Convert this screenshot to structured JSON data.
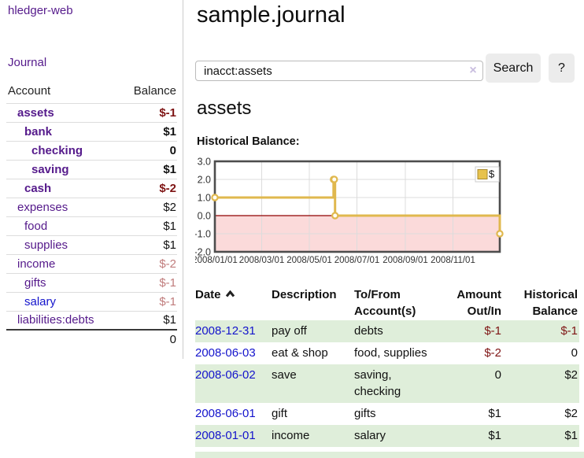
{
  "app": {
    "brand": "hledger-web"
  },
  "sidebar": {
    "nav_journal": "Journal",
    "accounts_table": {
      "col_account": "Account",
      "col_balance": "Balance",
      "rows": [
        {
          "name": "assets",
          "indent": 1,
          "bold": true,
          "name_tone": "purple",
          "balance": "$-1",
          "balance_tone": "neg-strong"
        },
        {
          "name": "bank",
          "indent": 2,
          "bold": true,
          "name_tone": "purple",
          "balance": "$1",
          "balance_tone": "normal"
        },
        {
          "name": "checking",
          "indent": 3,
          "bold": true,
          "name_tone": "purple",
          "balance": "0",
          "balance_tone": "normal"
        },
        {
          "name": "saving",
          "indent": 3,
          "bold": true,
          "name_tone": "purple",
          "balance": "$1",
          "balance_tone": "normal"
        },
        {
          "name": "cash",
          "indent": 2,
          "bold": true,
          "name_tone": "purple",
          "balance": "$-2",
          "balance_tone": "neg-strong"
        },
        {
          "name": "expenses",
          "indent": 1,
          "bold": false,
          "name_tone": "purple",
          "balance": "$2",
          "balance_tone": "normal"
        },
        {
          "name": "food",
          "indent": 2,
          "bold": false,
          "name_tone": "purple",
          "balance": "$1",
          "balance_tone": "normal"
        },
        {
          "name": "supplies",
          "indent": 2,
          "bold": false,
          "name_tone": "purple",
          "balance": "$1",
          "balance_tone": "normal"
        },
        {
          "name": "income",
          "indent": 1,
          "bold": false,
          "name_tone": "purple",
          "balance": "$-2",
          "balance_tone": "neg-muted"
        },
        {
          "name": "gifts",
          "indent": 2,
          "bold": false,
          "name_tone": "purple",
          "balance": "$-1",
          "balance_tone": "neg-muted"
        },
        {
          "name": "salary",
          "indent": 2,
          "bold": false,
          "name_tone": "blue",
          "balance": "$-1",
          "balance_tone": "neg-muted"
        },
        {
          "name": "liabilities:debts",
          "indent": 1,
          "bold": false,
          "name_tone": "purple",
          "balance": "$1",
          "balance_tone": "normal"
        }
      ],
      "total": "0"
    }
  },
  "main": {
    "title": "sample.journal",
    "search": {
      "value": "inacct:assets",
      "clear_icon": "×",
      "button_label": "Search",
      "help_label": "?"
    },
    "account_heading": "assets",
    "chart_heading": "Historical Balance:"
  },
  "chart_data": {
    "type": "line",
    "style": "step-after",
    "title": "Historical Balance:",
    "x_span_days": 365,
    "x_tick_labels": [
      "2008/01/01",
      "2008/03/01",
      "2008/05/01",
      "2008/07/01",
      "2008/09/01",
      "2008/11/01"
    ],
    "x_tick_days": [
      0,
      60,
      121,
      182,
      244,
      305
    ],
    "y_tick_labels": [
      "3.0",
      "2.0",
      "1.0",
      "0.0",
      "-1.0",
      "-2.0"
    ],
    "y_tick_values": [
      3,
      2,
      1,
      0,
      -1,
      -2
    ],
    "ylim": [
      -2,
      3
    ],
    "series": [
      {
        "name": "$",
        "color": "#e0b84e",
        "points": [
          {
            "date": "2008-01-01",
            "day": 0,
            "value": 1
          },
          {
            "date": "2008-06-01",
            "day": 152,
            "value": 2
          },
          {
            "date": "2008-06-02",
            "day": 153,
            "value": 2
          },
          {
            "date": "2008-06-03",
            "day": 154,
            "value": 0
          },
          {
            "date": "2008-12-31",
            "day": 365,
            "value": -1
          }
        ]
      }
    ],
    "legend": {
      "label": "$",
      "swatch_color": "#e7c24d",
      "position": "top-right"
    },
    "negative_region_fill": "#fbdada",
    "zero_line_color": "#8f0000",
    "grid_color": "#dcdcdc",
    "border_color": "#4d4d4d"
  },
  "register": {
    "headers": {
      "date": "Date",
      "description": "Description",
      "tofrom_1": "To/From",
      "tofrom_2": "Account(s)",
      "amount_1": "Amount",
      "amount_2": "Out/In",
      "balance_1": "Historical",
      "balance_2": "Balance"
    },
    "rows": [
      {
        "date": "2008-12-31",
        "description": "pay off",
        "accounts": [
          "debts"
        ],
        "amount": "$-1",
        "amount_neg": true,
        "balance": "$-1",
        "balance_neg": true
      },
      {
        "date": "2008-06-03",
        "description": "eat & shop",
        "accounts": [
          "food, supplies"
        ],
        "amount": "$-2",
        "amount_neg": true,
        "balance": "0",
        "balance_neg": false
      },
      {
        "date": "2008-06-02",
        "description": "save",
        "accounts": [
          "saving,",
          "checking"
        ],
        "amount": "0",
        "amount_neg": false,
        "balance": "$2",
        "balance_neg": false
      },
      {
        "date": "2008-06-01",
        "description": "gift",
        "accounts": [
          "gifts"
        ],
        "amount": "$1",
        "amount_neg": false,
        "balance": "$2",
        "balance_neg": false
      },
      {
        "date": "2008-01-01",
        "description": "income",
        "accounts": [
          "salary"
        ],
        "amount": "$1",
        "amount_neg": false,
        "balance": "$1",
        "balance_neg": false
      }
    ]
  }
}
